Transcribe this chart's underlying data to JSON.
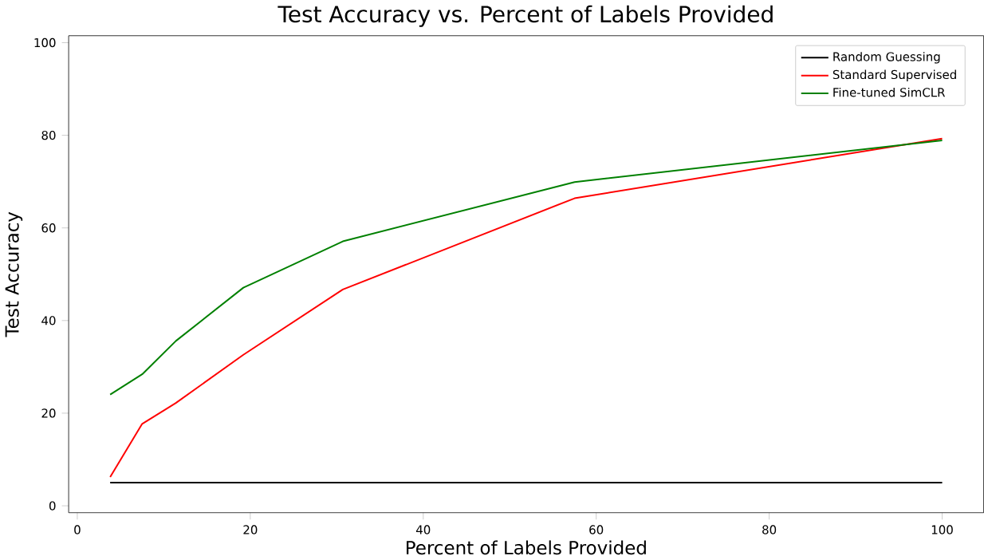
{
  "chart_data": {
    "type": "line",
    "title": "Test Accuracy vs. Percent of Labels Provided",
    "xlabel": "Percent of Labels Provided",
    "ylabel": "Test Accuracy",
    "x": [
      3.8,
      7.5,
      11.4,
      19.2,
      30.7,
      57.5,
      100
    ],
    "series": [
      {
        "name": "Random Guessing",
        "color": "#000000",
        "values": [
          5,
          5,
          5,
          5,
          5,
          5,
          5
        ]
      },
      {
        "name": "Standard Supervised",
        "color": "#ff0000",
        "values": [
          6.2,
          17.7,
          22.2,
          32.6,
          46.7,
          66.4,
          79.3
        ]
      },
      {
        "name": "Fine-tuned SimCLR",
        "color": "#008000",
        "values": [
          24.0,
          28.4,
          35.6,
          47.1,
          57.1,
          69.9,
          78.9
        ]
      }
    ],
    "xlim": [
      -1,
      104.8
    ],
    "ylim": [
      -1.5,
      101.5
    ],
    "xticks": [
      0,
      20,
      40,
      60,
      80,
      100
    ],
    "yticks": [
      0,
      20,
      40,
      60,
      80,
      100
    ],
    "legend": "top right",
    "grid": false,
    "marker": "none",
    "line_style": "solid"
  }
}
